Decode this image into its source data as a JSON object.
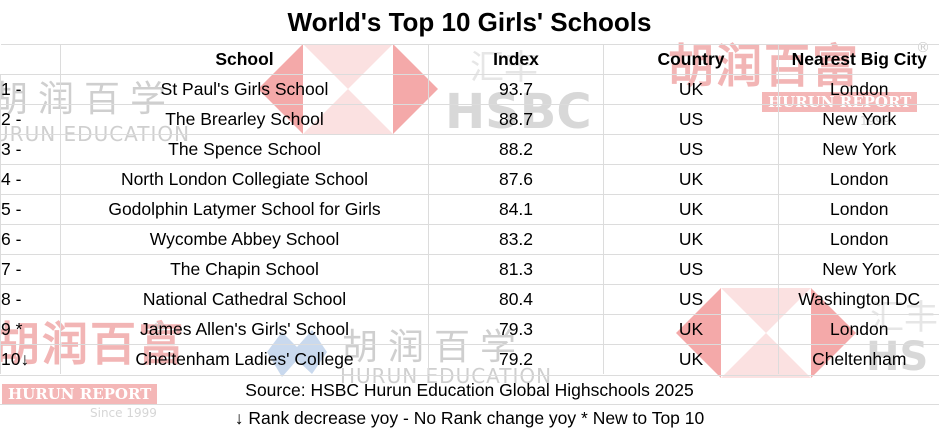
{
  "title": "World's Top 10 Girls' Schools",
  "columns": {
    "rank": "",
    "school": "School",
    "index": "Index",
    "country": "Country",
    "city": "Nearest Big City"
  },
  "rows": [
    {
      "rank": "1 -",
      "school": "St Paul's Girls School",
      "index": "93.7",
      "country": "UK",
      "city": "London"
    },
    {
      "rank": "2 -",
      "school": "The Brearley School",
      "index": "88.7",
      "country": "US",
      "city": "New York"
    },
    {
      "rank": "3 -",
      "school": "The Spence School",
      "index": "88.2",
      "country": "US",
      "city": "New York"
    },
    {
      "rank": "4 -",
      "school": "North London Collegiate School",
      "index": "87.6",
      "country": "UK",
      "city": "London"
    },
    {
      "rank": "5 -",
      "school": "Godolphin Latymer School for Girls",
      "index": "84.1",
      "country": "UK",
      "city": "London"
    },
    {
      "rank": "6 -",
      "school": "Wycombe Abbey School",
      "index": "83.2",
      "country": "UK",
      "city": "London"
    },
    {
      "rank": "7 -",
      "school": "The Chapin School",
      "index": "81.3",
      "country": "US",
      "city": "New York"
    },
    {
      "rank": "8 -",
      "school": "National Cathedral School",
      "index": "80.4",
      "country": "US",
      "city": "Washington DC"
    },
    {
      "rank": "9 *",
      "school": "James Allen's Girls' School",
      "index": "79.3",
      "country": "UK",
      "city": "London"
    },
    {
      "rank": "10↓",
      "school": "Cheltenham Ladies' College",
      "index": "79.2",
      "country": "UK",
      "city": "Cheltenham"
    }
  ],
  "footer": {
    "source": "Source: HSBC Hurun Education Global Highschools 2025",
    "legend": "↓ Rank decrease yoy  - No Rank change yoy  * New to Top 10"
  },
  "watermarks": {
    "hurun_cn": "胡润百富",
    "hurun_report": "HURUN REPORT",
    "hurun_since": "Since 1999",
    "hsbc": "HSBC",
    "hsbc_cn": "汇丰",
    "hurun_edu_cn": "胡润百学",
    "hurun_edu_en": "HURUN EDUCATION",
    "registered": "®"
  },
  "colors": {
    "hsbc_red": "#f4a9a9",
    "hurun_pink": "#f2b5b5",
    "grid_line": "#dcdcdc"
  }
}
